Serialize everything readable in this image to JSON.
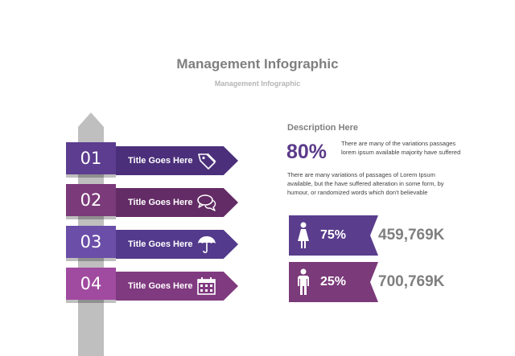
{
  "header": {
    "title": "Management Infographic",
    "subtitle": "Management Infographic"
  },
  "signs": [
    {
      "number": "01",
      "label": "Title Goes Here",
      "icon": "tag-icon",
      "box_color": "#5c3d8f",
      "arrow_color": "#4b2f7a"
    },
    {
      "number": "02",
      "label": "Title Goes Here",
      "icon": "chat-bubbles-icon",
      "box_color": "#7b3a7a",
      "arrow_color": "#632c66"
    },
    {
      "number": "03",
      "label": "Title Goes Here",
      "icon": "umbrella-icon",
      "box_color": "#6a4ea8",
      "arrow_color": "#533a8c"
    },
    {
      "number": "04",
      "label": "Title Goes Here",
      "icon": "calendar-icon",
      "box_color": "#a04aa0",
      "arrow_color": "#803a80"
    }
  ],
  "description": {
    "heading": "Description Here",
    "percent": "80%",
    "percent_text": "There are many of the variations passages lorem ipsum available majority have suffered",
    "paragraph": "There are many variations of passages  of Lorem Ipsum available, but the have suffered alteration in some  form, by humour, or randomized words  which  don't believable"
  },
  "stats": [
    {
      "icon": "female-person-icon",
      "percent": "75%",
      "value": "459,769K",
      "color": "#5a3d8c"
    },
    {
      "icon": "male-person-icon",
      "percent": "25%",
      "value": "700,769K",
      "color": "#7b3a7a"
    }
  ]
}
